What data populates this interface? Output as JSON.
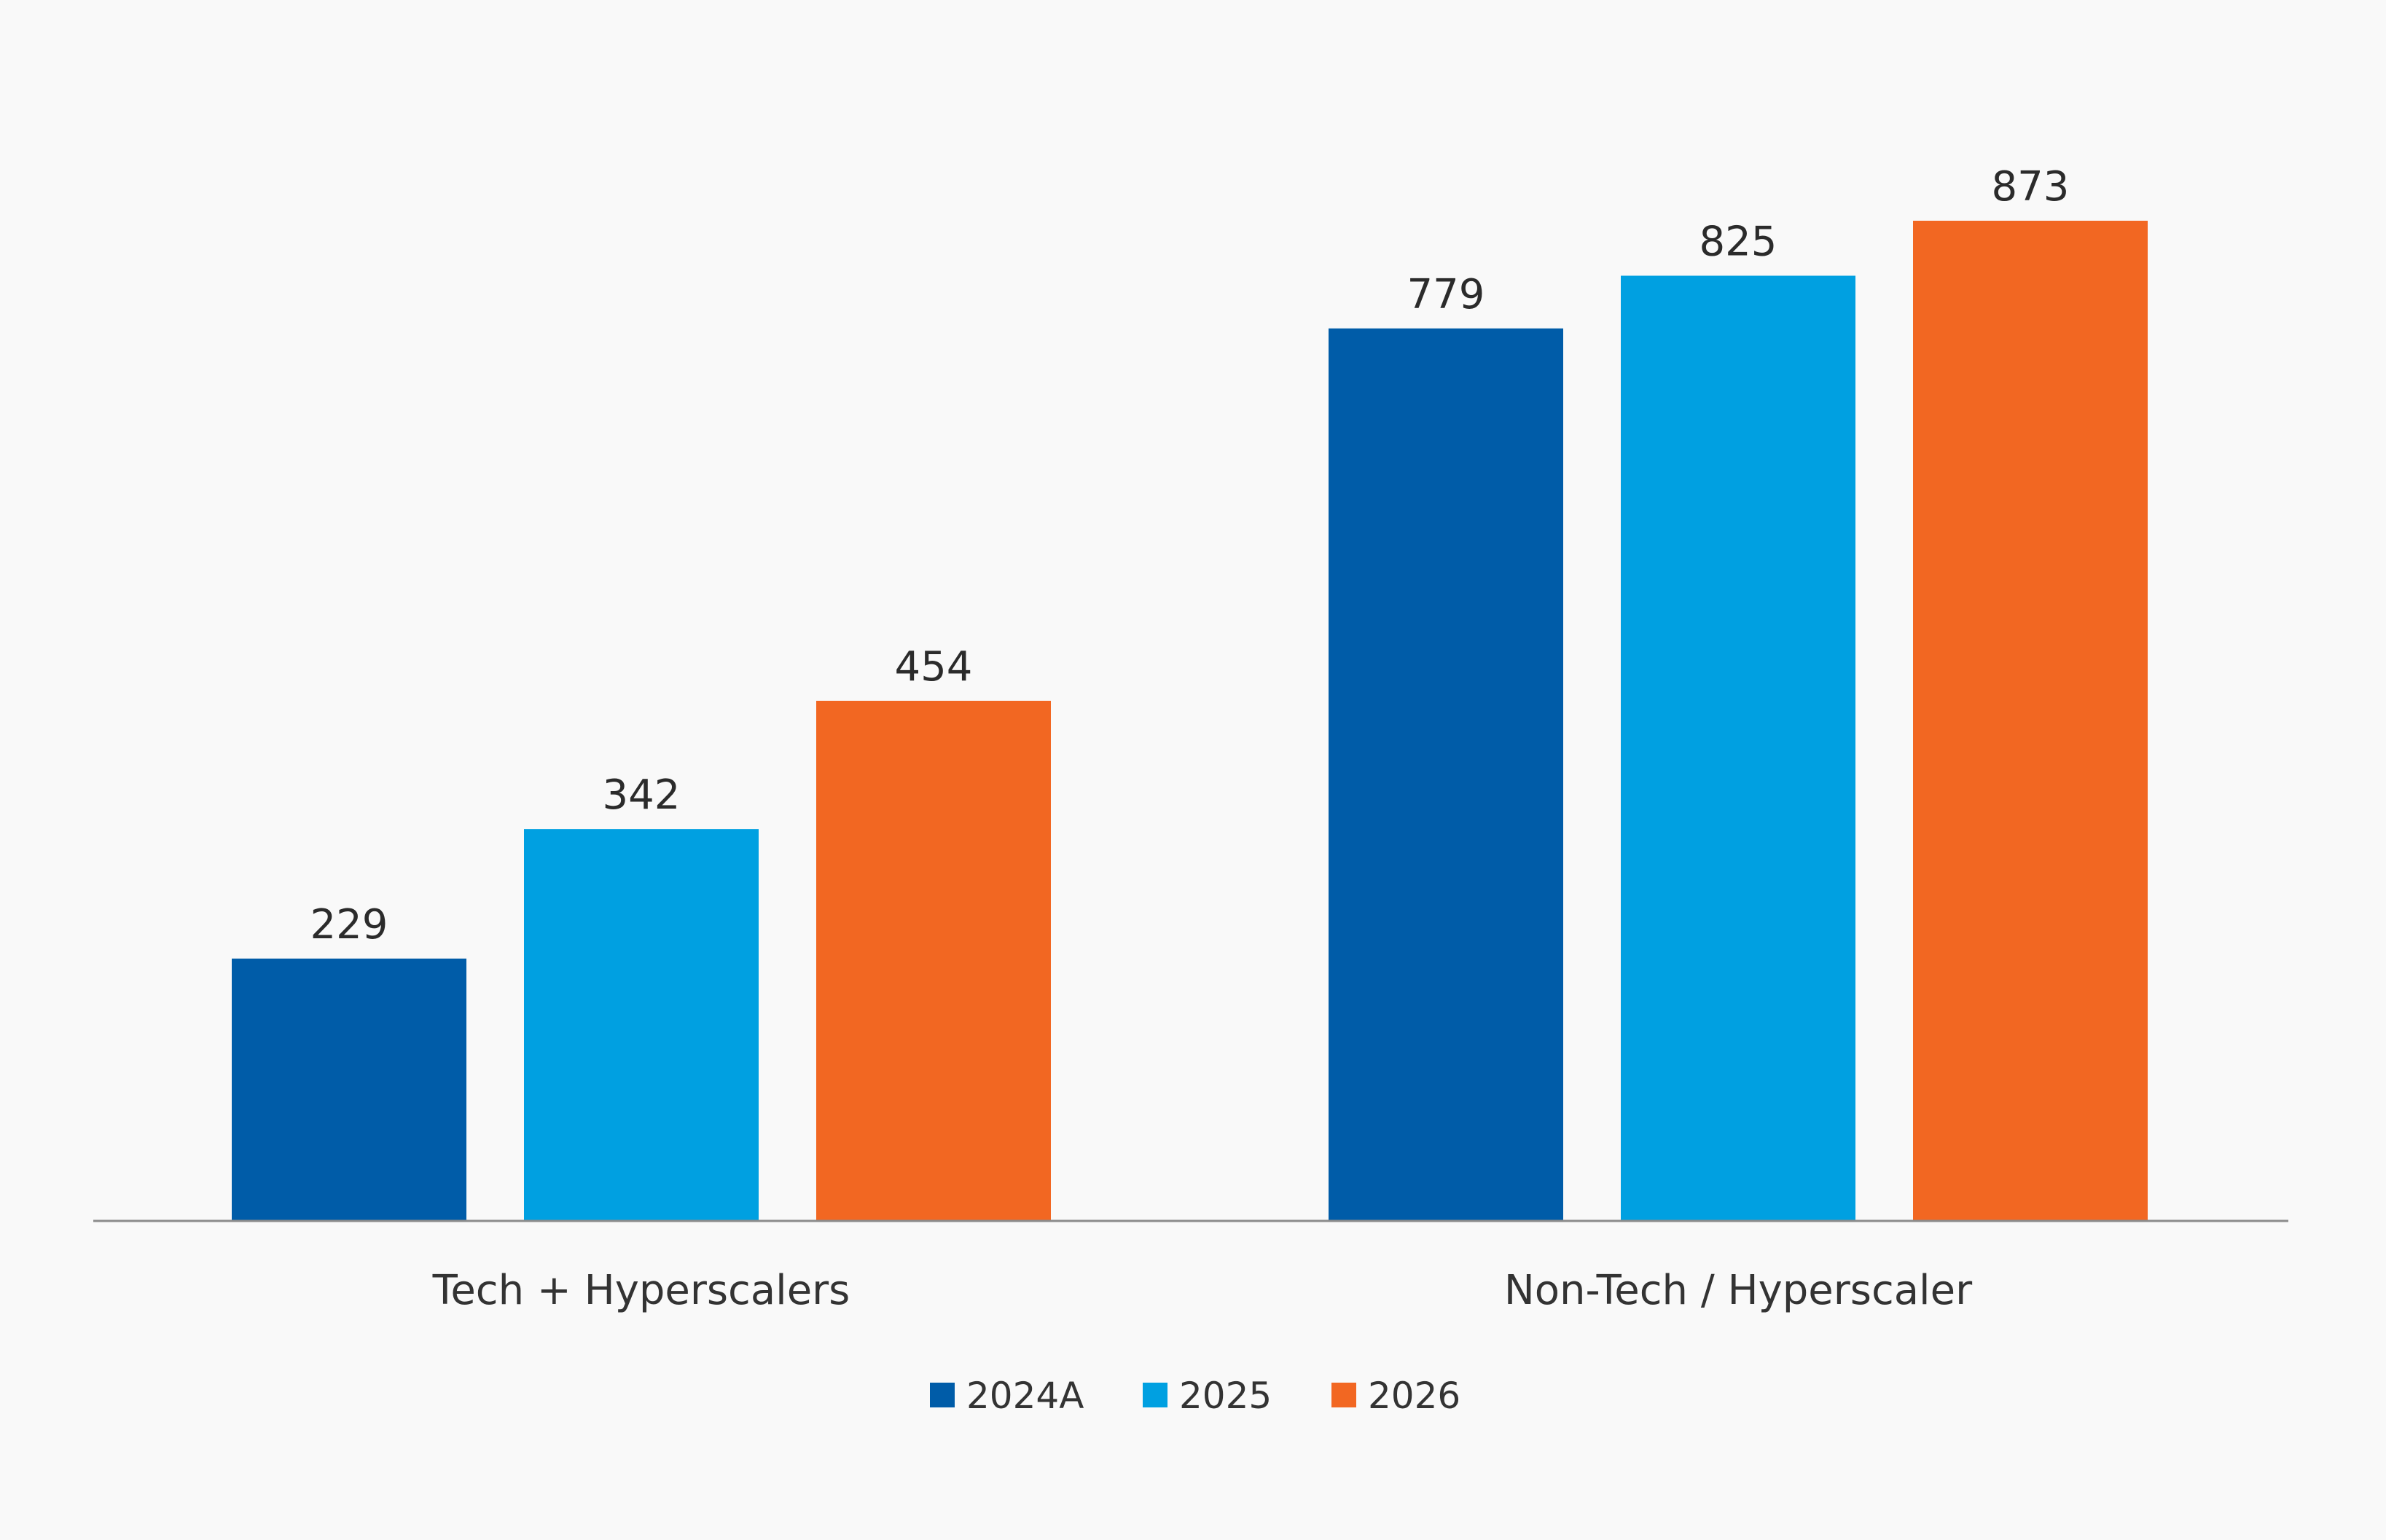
{
  "chart_data": {
    "type": "bar",
    "title": "",
    "xlabel": "",
    "ylabel": "",
    "ylim": [
      0,
      873
    ],
    "grid": false,
    "legend_position": "bottom-center",
    "categories": [
      "Tech + Hyperscalers",
      "Non-Tech / Hyperscaler"
    ],
    "series": [
      {
        "name": "2024A",
        "color": "#005ca8",
        "values": [
          229,
          779
        ]
      },
      {
        "name": "2025",
        "color": "#00a0e1",
        "values": [
          342,
          825
        ]
      },
      {
        "name": "2026",
        "color": "#f26722",
        "values": [
          454,
          873
        ]
      }
    ]
  },
  "colors": {
    "background": "#f9f9f9",
    "axis": "#8c8c8c",
    "text": "#2b2b2b"
  }
}
